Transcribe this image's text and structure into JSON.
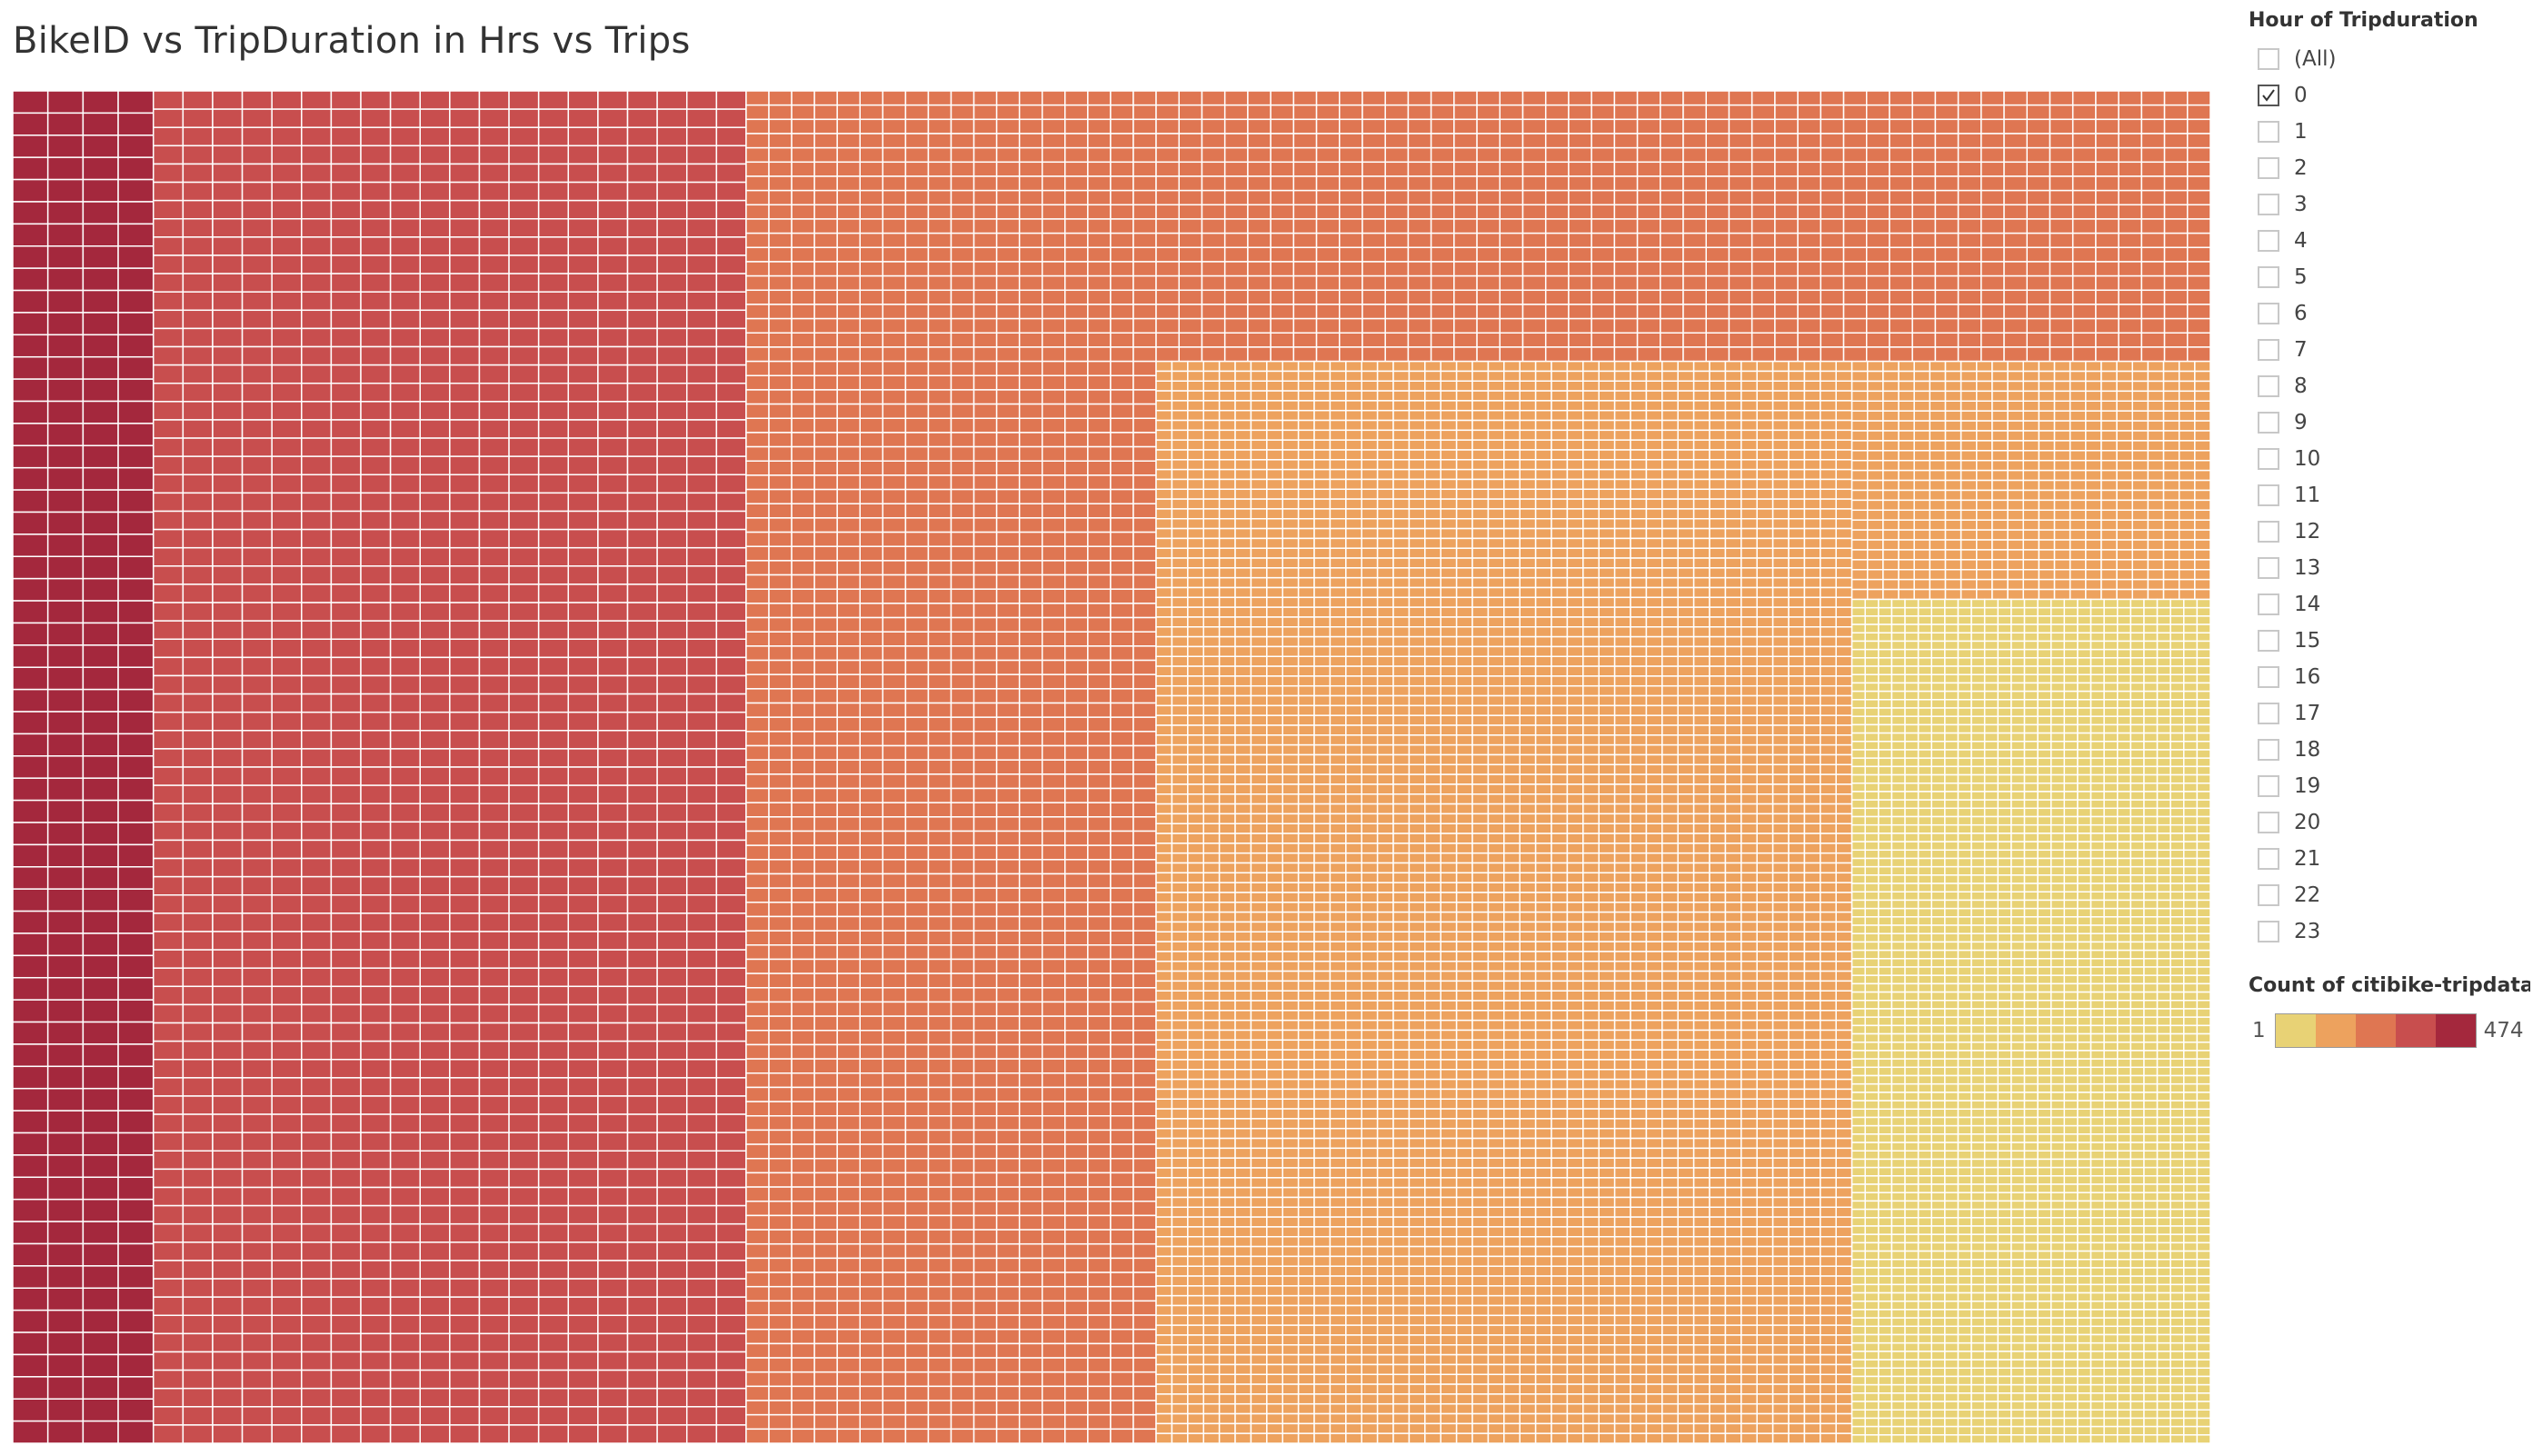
{
  "title": "BikeID vs TripDuration in Hrs vs Trips",
  "filter": {
    "title": "Hour of Tripduration",
    "options": [
      {
        "label": "(All)",
        "checked": false
      },
      {
        "label": "0",
        "checked": true
      },
      {
        "label": "1",
        "checked": false
      },
      {
        "label": "2",
        "checked": false
      },
      {
        "label": "3",
        "checked": false
      },
      {
        "label": "4",
        "checked": false
      },
      {
        "label": "5",
        "checked": false
      },
      {
        "label": "6",
        "checked": false
      },
      {
        "label": "7",
        "checked": false
      },
      {
        "label": "8",
        "checked": false
      },
      {
        "label": "9",
        "checked": false
      },
      {
        "label": "10",
        "checked": false
      },
      {
        "label": "11",
        "checked": false
      },
      {
        "label": "12",
        "checked": false
      },
      {
        "label": "13",
        "checked": false
      },
      {
        "label": "14",
        "checked": false
      },
      {
        "label": "15",
        "checked": false
      },
      {
        "label": "16",
        "checked": false
      },
      {
        "label": "17",
        "checked": false
      },
      {
        "label": "18",
        "checked": false
      },
      {
        "label": "19",
        "checked": false
      },
      {
        "label": "20",
        "checked": false
      },
      {
        "label": "21",
        "checked": false
      },
      {
        "label": "22",
        "checked": false
      },
      {
        "label": "23",
        "checked": false
      }
    ]
  },
  "legend": {
    "title": "Count of citibike-tripdata...",
    "min": "1",
    "max": "474",
    "colors": [
      "#e8d275",
      "#eda25e",
      "#df7652",
      "#c84e4e",
      "#a4283d"
    ]
  },
  "chart_data": {
    "type": "treemap",
    "title": "BikeID vs TripDuration in Hrs vs Trips",
    "color_measure": "Count of citibike-tripdata...",
    "filter": {
      "field": "Hour of Tripduration",
      "selected": [
        "0"
      ]
    },
    "value_range": [
      1,
      474
    ],
    "groups": [
      {
        "color_step": 5,
        "tile_count": 240,
        "approx_value": 430
      },
      {
        "color_step": 4,
        "tile_count": 1500,
        "approx_value": 290
      },
      {
        "color_step": 3,
        "tile_count": 2600,
        "approx_value": 190
      },
      {
        "color_step": 2,
        "tile_count": 5400,
        "approx_value": 95
      },
      {
        "color_step": 1,
        "tile_count": 2700,
        "approx_value": 25
      }
    ]
  }
}
